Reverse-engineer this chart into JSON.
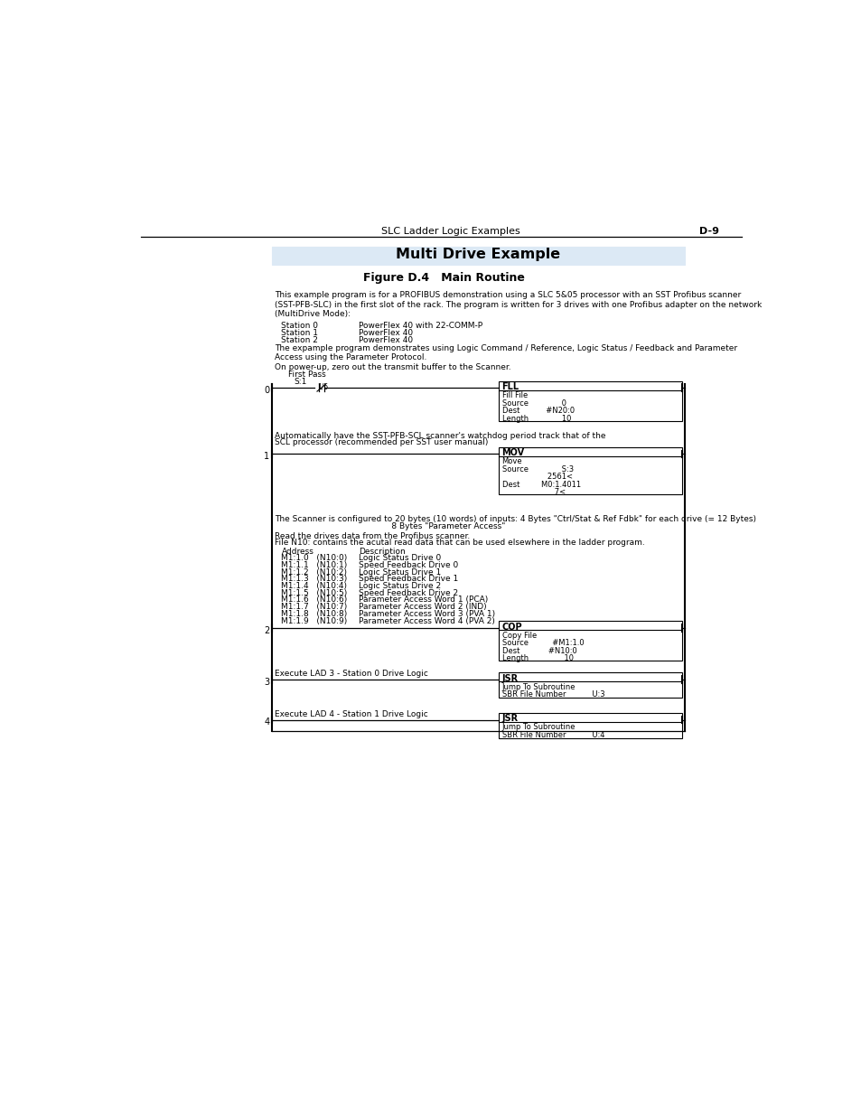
{
  "page_title": "SLC Ladder Logic Examples",
  "page_num": "D-9",
  "section_title": "Multi Drive Example",
  "figure_title": "Figure D.4   Main Routine",
  "header_bg": "#dce9f5",
  "body_bg": "#ffffff",
  "intro_text": "This example program is for a PROFIBUS demonstration using a SLC 5&05 processor with an SST Profibus scanner\n(SST-PFB-SLC) in the first slot of the rack. The program is written for 3 drives with one Profibus adapter on the network\n(MultiDrive Mode):",
  "station0": [
    "Station 0",
    "PowerFlex 40 with 22-COMM-P"
  ],
  "station1": [
    "Station 1",
    "PowerFlex 40"
  ],
  "station2": [
    "Station 2",
    "PowerFlex 40"
  ],
  "example_desc": "The expample program demonstrates using Logic Command / Reference, Logic Status / Feedback and Parameter\nAccess using the Parameter Protocol.",
  "power_up_text": "On power-up, zero out the transmit buffer to the Scanner.",
  "first_pass": "First Pass",
  "s1": "S:1",
  "contact_id": "1/5",
  "rung0_label": "0",
  "rung0_block_title": "FLL",
  "rung0_block_lines": [
    "Fill File",
    "Source              0",
    "Dest           #N20:0",
    "Length              10"
  ],
  "rung1_text1": "Automatically have the SST-PFB-SCL scanner's watchdog period track that of the",
  "rung1_text2": "SCL processor (recommended per SST user manual)",
  "rung1_label": "1",
  "rung1_block_title": "MOV",
  "rung1_block_lines": [
    "Move",
    "Source              S:3",
    "                   2561<",
    "Dest         M0:1.4011",
    "                      7<"
  ],
  "scanner_text1": "The Scanner is configured to 20 bytes (10 words) of inputs: 4 Bytes \"Ctrl/Stat & Ref Fdbk\" for each drive (= 12 Bytes)",
  "scanner_text2": "                                             8 Bytes \"Parameter Access\"",
  "read_text": "Read the drives data from the Profibus scanner.",
  "file_n10_text": "File N10: contains the acutal read data that can be used elsewhere in the ladder program.",
  "address_header_col1": "Address",
  "address_header_col2": "Description",
  "address_lines": [
    [
      "M1:1.0   (N10:0)",
      "Logic Status Drive 0"
    ],
    [
      "M1:1.1   (N10:1)",
      "Speed Feedback Drive 0"
    ],
    [
      "M1:1.2   (N10:2)",
      "Logic Status Drive 1"
    ],
    [
      "M1:1.3   (N10:3)",
      "Speed Feedback Drive 1"
    ],
    [
      "M1:1.4   (N10:4)",
      "Logic Status Drive 2"
    ],
    [
      "M1:1.5   (N10:5)",
      "Speed Feedback Drive 2"
    ],
    [
      "M1:1.6   (N10:6)",
      "Parameter Access Word 1 (PCA)"
    ],
    [
      "M1:1.7   (N10:7)",
      "Parameter Access Word 2 (IND)"
    ],
    [
      "M1:1.8   (N10:8)",
      "Parameter Access Word 3 (PVA 1)"
    ],
    [
      "M1:1.9   (N10:9)",
      "Parameter Access Word 4 (PVA 2)"
    ]
  ],
  "rung2_label": "2",
  "rung2_block_title": "COP",
  "rung2_block_lines": [
    "Copy File",
    "Source          #M1:1.0",
    "Dest            #N10:0",
    "Length               10"
  ],
  "rung3_text": "Execute LAD 3 - Station 0 Drive Logic",
  "rung3_label": "3",
  "rung3_block_title": "JSR",
  "rung3_block_lines": [
    "Jump To Subroutine",
    "SBR File Number           U:3"
  ],
  "rung4_text": "Execute LAD 4 - Station 1 Drive Logic",
  "rung4_label": "4",
  "rung4_block_title": "JSR",
  "rung4_block_lines": [
    "Jump To Subroutine",
    "SBR File Number           U:4"
  ]
}
